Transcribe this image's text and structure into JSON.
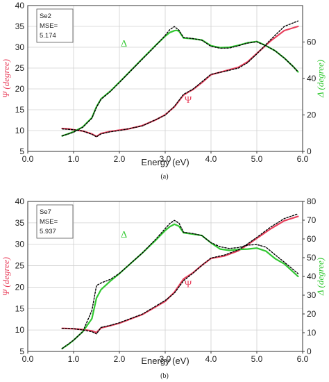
{
  "chart_data": [
    {
      "panel": "(a)",
      "type": "line",
      "xlabel": "Energy (eV)",
      "ylabel_left": "Ψ (degree)",
      "ylabel_right": "Δ (degree)",
      "xlim": [
        0.0,
        6.0
      ],
      "ylim_left": [
        5,
        40
      ],
      "ylim_right": [
        0,
        80
      ],
      "x_ticks": [
        "0.0",
        "1.0",
        "2.0",
        "3.0",
        "4.0",
        "5.0",
        "6.0"
      ],
      "y_left_ticks": [
        "5",
        "10",
        "15",
        "20",
        "25",
        "30",
        "35",
        "40"
      ],
      "y_right_ticks": [
        "0",
        "20",
        "40",
        "60"
      ],
      "grid": true,
      "legend": {
        "lines": [
          "Se2",
          "MSE=",
          "5.174"
        ],
        "placement": "top-left"
      },
      "series": [
        {
          "name": "Ψ",
          "axis": "left",
          "color": "#e8405c",
          "x": [
            0.75,
            0.9,
            1.0,
            1.2,
            1.4,
            1.5,
            1.6,
            1.8,
            2.0,
            2.2,
            2.5,
            2.8,
            3.0,
            3.2,
            3.4,
            3.5,
            3.6,
            3.8,
            4.0,
            4.3,
            4.6,
            4.8,
            5.0,
            5.3,
            5.6,
            5.9
          ],
          "y": [
            10.5,
            10.4,
            10.2,
            9.9,
            9.2,
            8.6,
            9.3,
            9.8,
            10.1,
            10.4,
            11.2,
            12.6,
            13.8,
            15.7,
            18.5,
            19.2,
            19.8,
            21.5,
            23.4,
            24.3,
            25.2,
            26.5,
            28.5,
            31.5,
            34.0,
            35.0
          ]
        },
        {
          "name": "Δ",
          "axis": "right",
          "color": "#30c830",
          "x": [
            0.75,
            0.9,
            1.0,
            1.2,
            1.4,
            1.5,
            1.6,
            1.8,
            2.0,
            2.2,
            2.5,
            2.8,
            3.0,
            3.1,
            3.2,
            3.25,
            3.3,
            3.4,
            3.6,
            3.8,
            4.0,
            4.2,
            4.4,
            4.6,
            4.8,
            5.0,
            5.2,
            5.4,
            5.6,
            5.8,
            5.9
          ],
          "y": [
            8.5,
            9.8,
            10.8,
            13.4,
            18.5,
            24.5,
            28.8,
            33.0,
            38.0,
            43.1,
            50.8,
            58.4,
            63.2,
            65.2,
            66.2,
            66.4,
            66.0,
            62.2,
            61.8,
            61.1,
            58.0,
            56.9,
            57.1,
            58.2,
            59.6,
            60.3,
            58.0,
            55.2,
            51.2,
            46.4,
            43.6
          ]
        },
        {
          "name": "",
          "axis": "left",
          "color": "#000000",
          "dashed": true,
          "x": [
            0.75,
            1.0,
            1.2,
            1.4,
            1.5,
            1.6,
            1.8,
            2.0,
            2.5,
            3.0,
            3.2,
            3.4,
            3.6,
            3.8,
            4.0,
            4.3,
            4.6,
            4.8,
            5.0,
            5.3,
            5.6,
            5.9
          ],
          "y": [
            10.4,
            10.2,
            9.9,
            9.1,
            8.5,
            9.2,
            9.7,
            10.0,
            11.1,
            13.7,
            15.8,
            18.7,
            19.9,
            21.7,
            23.5,
            24.2,
            25.0,
            26.3,
            28.4,
            31.8,
            35.0,
            36.3
          ]
        },
        {
          "name": "",
          "axis": "right",
          "color": "#000000",
          "dashed": true,
          "x": [
            0.75,
            1.0,
            1.2,
            1.4,
            1.5,
            1.6,
            1.8,
            2.0,
            2.5,
            2.8,
            3.0,
            3.1,
            3.2,
            3.3,
            3.4,
            3.6,
            3.8,
            4.0,
            4.2,
            4.4,
            4.6,
            4.8,
            5.0,
            5.2,
            5.4,
            5.6,
            5.8,
            5.9
          ],
          "y": [
            8.5,
            10.5,
            13.2,
            18.2,
            24.2,
            28.6,
            32.8,
            37.8,
            50.6,
            58.2,
            63.6,
            66.8,
            68.5,
            66.5,
            62.5,
            61.9,
            61.0,
            57.6,
            56.6,
            56.7,
            58.0,
            59.4,
            60.1,
            58.0,
            55.2,
            51.2,
            46.4,
            43.6
          ]
        }
      ],
      "annotations": [
        {
          "text": "Δ",
          "x": 2.1,
          "y_left": 30.2,
          "color": "#30c830"
        },
        {
          "text": "Ψ",
          "x": 3.5,
          "y_left": 16.7,
          "color": "#e8405c"
        }
      ],
      "caption": "(a)"
    },
    {
      "panel": "(b)",
      "type": "line",
      "xlabel": "Energy (eV)",
      "ylabel_left": "Ψ (degree)",
      "ylabel_right": "Δ (degree)",
      "xlim": [
        0.0,
        6.0
      ],
      "ylim_left": [
        5,
        40
      ],
      "ylim_right": [
        0,
        80
      ],
      "x_ticks": [
        "0.0",
        "1.0",
        "2.0",
        "3.0",
        "4.0",
        "5.0",
        "6.0"
      ],
      "y_left_ticks": [
        "5",
        "10",
        "15",
        "20",
        "25",
        "30",
        "35",
        "40"
      ],
      "y_right_ticks": [
        "0",
        "10",
        "20",
        "30",
        "40",
        "50",
        "60",
        "70",
        "80"
      ],
      "grid": true,
      "legend": {
        "lines": [
          "Se7",
          "MSE=",
          "5.937"
        ],
        "placement": "top-left"
      },
      "series": [
        {
          "name": "Ψ",
          "axis": "left",
          "color": "#e8405c",
          "x": [
            0.75,
            1.0,
            1.2,
            1.4,
            1.5,
            1.6,
            1.8,
            2.0,
            2.5,
            3.0,
            3.2,
            3.4,
            3.6,
            3.8,
            4.0,
            4.3,
            4.6,
            4.8,
            5.0,
            5.3,
            5.6,
            5.9
          ],
          "y": [
            10.4,
            10.3,
            10.1,
            9.8,
            9.4,
            10.5,
            11.0,
            11.6,
            13.6,
            16.7,
            18.8,
            21.9,
            23.3,
            25.1,
            26.7,
            27.3,
            28.5,
            29.9,
            31.4,
            33.6,
            35.5,
            36.5
          ]
        },
        {
          "name": "Δ",
          "axis": "right",
          "color": "#30c830",
          "x": [
            0.75,
            0.9,
            1.0,
            1.2,
            1.4,
            1.5,
            1.6,
            1.8,
            2.0,
            2.5,
            2.8,
            3.0,
            3.1,
            3.2,
            3.3,
            3.4,
            3.6,
            3.8,
            4.0,
            4.2,
            4.4,
            4.6,
            4.8,
            5.0,
            5.2,
            5.4,
            5.6,
            5.9
          ],
          "y": [
            1.5,
            4.0,
            6.0,
            10.5,
            17.5,
            28.5,
            33.0,
            37.5,
            41.5,
            52.5,
            59.5,
            64.5,
            66.5,
            67.8,
            66.8,
            63.3,
            62.6,
            61.8,
            57.9,
            54.6,
            53.9,
            54.4,
            54.6,
            55.1,
            53.5,
            49.5,
            46.7,
            40.0
          ]
        },
        {
          "name": "",
          "axis": "left",
          "color": "#000000",
          "dashed": true,
          "x": [
            0.75,
            1.0,
            1.2,
            1.4,
            1.5,
            1.6,
            1.8,
            2.0,
            2.5,
            3.0,
            3.2,
            3.4,
            3.6,
            3.8,
            4.0,
            4.3,
            4.6,
            4.8,
            5.0,
            5.3,
            5.6,
            5.9
          ],
          "y": [
            10.4,
            10.3,
            10.0,
            9.6,
            9.1,
            10.6,
            11.1,
            11.7,
            13.7,
            16.9,
            18.6,
            21.5,
            23.2,
            25.1,
            26.8,
            27.5,
            28.7,
            30.1,
            31.6,
            34.0,
            36.0,
            37.1
          ]
        },
        {
          "name": "",
          "axis": "right",
          "color": "#000000",
          "dashed": true,
          "x": [
            0.75,
            1.0,
            1.2,
            1.4,
            1.5,
            1.6,
            1.8,
            2.0,
            2.5,
            2.8,
            3.0,
            3.1,
            3.2,
            3.3,
            3.4,
            3.6,
            3.8,
            4.0,
            4.2,
            4.4,
            4.6,
            4.8,
            5.0,
            5.2,
            5.4,
            5.6,
            5.9
          ],
          "y": [
            1.5,
            6.0,
            10.5,
            21.8,
            35.1,
            36.5,
            38.4,
            41.6,
            52.5,
            60.0,
            65.5,
            68.2,
            69.9,
            68.5,
            63.6,
            62.9,
            61.8,
            58.0,
            55.8,
            54.9,
            55.4,
            56.7,
            57.0,
            55.6,
            51.5,
            47.6,
            41.5
          ]
        }
      ],
      "annotations": [
        {
          "text": "Δ",
          "x": 2.1,
          "y_left": 31.6,
          "color": "#30c830"
        },
        {
          "text": "Ψ",
          "x": 3.5,
          "y_left": 20.0,
          "color": "#e8405c"
        }
      ],
      "caption": "(b)"
    }
  ],
  "colors": {
    "psi_axis": "#e8405c",
    "delta_axis": "#30c830",
    "fit": "#000000",
    "grid": "#d0d0d0"
  }
}
